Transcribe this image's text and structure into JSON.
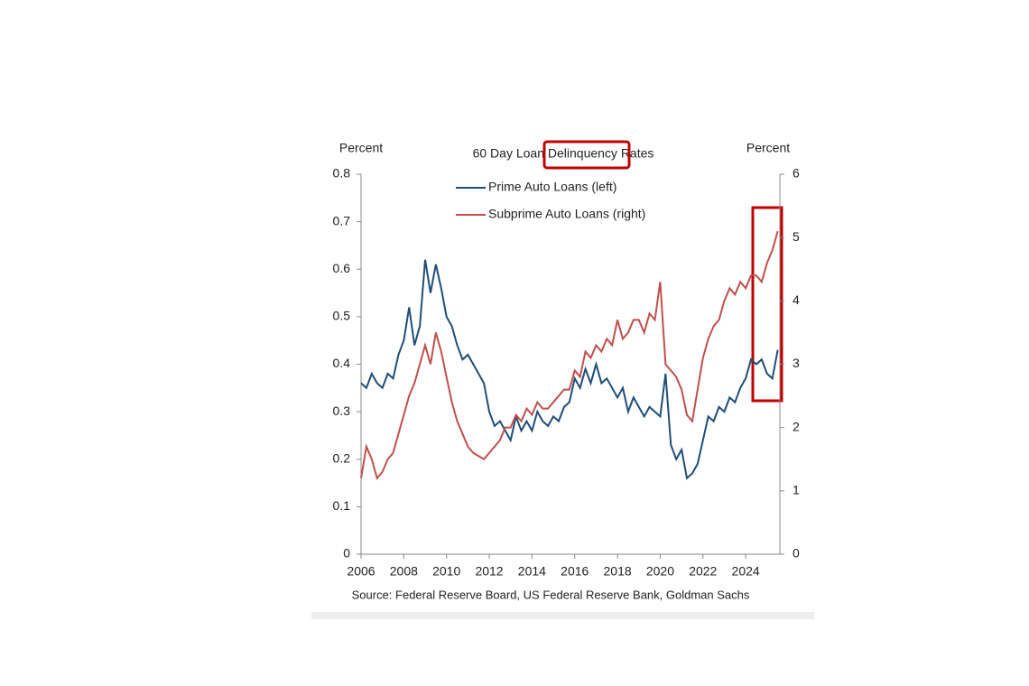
{
  "chart_data": {
    "type": "line",
    "title": "60 Day Loan Delinquency Rates",
    "y_label": "Percent",
    "y2_label": "Percent",
    "source": "Source: Federal Reserve Board, US Federal Reserve Bank, Goldman Sachs",
    "x": [
      2006,
      2006.25,
      2006.5,
      2006.75,
      2007,
      2007.25,
      2007.5,
      2007.75,
      2008,
      2008.25,
      2008.5,
      2008.75,
      2009,
      2009.25,
      2009.5,
      2009.75,
      2010,
      2010.25,
      2010.5,
      2010.75,
      2011,
      2011.25,
      2011.5,
      2011.75,
      2012,
      2012.25,
      2012.5,
      2012.75,
      2013,
      2013.25,
      2013.5,
      2013.75,
      2014,
      2014.25,
      2014.5,
      2014.75,
      2015,
      2015.25,
      2015.5,
      2015.75,
      2016,
      2016.25,
      2016.5,
      2016.75,
      2017,
      2017.25,
      2017.5,
      2017.75,
      2018,
      2018.25,
      2018.5,
      2018.75,
      2019,
      2019.25,
      2019.5,
      2019.75,
      2020,
      2020.25,
      2020.5,
      2020.75,
      2021,
      2021.25,
      2021.5,
      2021.75,
      2022,
      2022.25,
      2022.5,
      2022.75,
      2023,
      2023.25,
      2023.5,
      2023.75,
      2024,
      2024.25,
      2024.5,
      2024.75,
      2025,
      2025.25,
      2025.5
    ],
    "series": [
      {
        "name": "Prime  Auto Loans (left)",
        "color": "#1f4e79",
        "axis": "y",
        "values": [
          0.36,
          0.35,
          0.38,
          0.36,
          0.35,
          0.38,
          0.37,
          0.42,
          0.45,
          0.52,
          0.44,
          0.48,
          0.62,
          0.55,
          0.61,
          0.56,
          0.5,
          0.48,
          0.44,
          0.41,
          0.42,
          0.4,
          0.38,
          0.36,
          0.3,
          0.27,
          0.28,
          0.26,
          0.24,
          0.29,
          0.26,
          0.28,
          0.26,
          0.3,
          0.28,
          0.27,
          0.29,
          0.28,
          0.31,
          0.32,
          0.37,
          0.35,
          0.39,
          0.36,
          0.4,
          0.36,
          0.37,
          0.35,
          0.33,
          0.35,
          0.3,
          0.33,
          0.31,
          0.29,
          0.31,
          0.3,
          0.29,
          0.38,
          0.23,
          0.2,
          0.22,
          0.16,
          0.17,
          0.19,
          0.24,
          0.29,
          0.28,
          0.31,
          0.3,
          0.33,
          0.32,
          0.35,
          0.37,
          0.41,
          0.4,
          0.41,
          0.38,
          0.37,
          0.43
        ]
      },
      {
        "name": "Subprime Auto Loans (right)",
        "color": "#c0504d",
        "axis": "y2",
        "values": [
          1.2,
          1.7,
          1.5,
          1.2,
          1.3,
          1.5,
          1.6,
          1.9,
          2.2,
          2.5,
          2.7,
          3.0,
          3.3,
          3.0,
          3.5,
          3.2,
          2.8,
          2.4,
          2.1,
          1.9,
          1.7,
          1.6,
          1.55,
          1.5,
          1.6,
          1.7,
          1.8,
          2.0,
          2.0,
          2.2,
          2.1,
          2.3,
          2.2,
          2.4,
          2.3,
          2.3,
          2.4,
          2.5,
          2.6,
          2.6,
          2.9,
          2.8,
          3.2,
          3.1,
          3.3,
          3.2,
          3.4,
          3.3,
          3.7,
          3.4,
          3.5,
          3.7,
          3.7,
          3.5,
          3.8,
          3.7,
          4.3,
          3.0,
          2.9,
          2.8,
          2.6,
          2.2,
          2.1,
          2.6,
          3.1,
          3.4,
          3.6,
          3.7,
          4.0,
          4.2,
          4.1,
          4.3,
          4.2,
          4.4,
          4.4,
          4.3,
          4.6,
          4.8,
          5.1
        ]
      }
    ],
    "xlim": [
      2006,
      2025.6
    ],
    "xticks": [
      2006,
      2008,
      2010,
      2012,
      2014,
      2016,
      2018,
      2020,
      2022,
      2024
    ],
    "ylim": [
      0,
      0.8
    ],
    "yticks": [
      0,
      0.1,
      0.2,
      0.3,
      0.4,
      0.5,
      0.6,
      0.7,
      0.8
    ],
    "y2lim": [
      0,
      6
    ],
    "y2ticks": [
      0,
      1,
      2,
      3,
      4,
      5,
      6
    ],
    "grid": false
  }
}
